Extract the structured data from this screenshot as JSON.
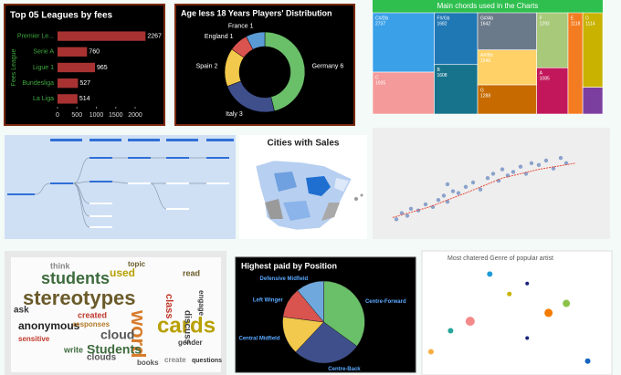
{
  "chart_data": [
    {
      "type": "bar",
      "orientation": "horizontal",
      "title": "Top 05 Leagues by fees",
      "y_label": "Fees League",
      "categories": [
        "Premier Le...",
        "Serie A",
        "Ligue 1",
        "Bundesliga",
        "La Liga"
      ],
      "values": [
        2267,
        760,
        965,
        527,
        514
      ],
      "color": "#a83232",
      "label_color": "#3ea83e",
      "xlim": [
        0,
        2400
      ],
      "xticks": [
        0,
        500,
        1000,
        1500,
        2000
      ]
    },
    {
      "type": "pie",
      "hole": true,
      "title": "Age less 18 Years Players' Distribution",
      "categories": [
        "Germany",
        "Italy",
        "Spain",
        "England",
        "France"
      ],
      "values": [
        6,
        3,
        2,
        1,
        1
      ],
      "colors": [
        "#6abf69",
        "#3e4f8c",
        "#f2c94c",
        "#d9534f",
        "#5b9bd5"
      ],
      "label_color": "#ffffff"
    },
    {
      "type": "treemap",
      "title": "Main chords used in the Charts",
      "categories": [
        "C#/Db",
        "F#/Gb",
        "G#/Ab",
        "F",
        "E",
        "D",
        "C",
        "B",
        "A#/Bb",
        "G",
        "A",
        null
      ],
      "values": [
        2737,
        1682,
        1642,
        1292,
        1118,
        1114,
        1935,
        1608,
        1546,
        1288,
        1085,
        400
      ],
      "colors": [
        "#3aa0e8",
        "#1f77b4",
        "#6b7a8a",
        "#a9c97a",
        "#f47c20",
        "#c9b200",
        "#f49a9a",
        "#17738c",
        "#ffd166",
        "#c76b00",
        "#c2185b",
        "#7b3fa0"
      ],
      "header_color": "#2fbf4f"
    },
    {
      "type": "scatter",
      "x": [
        2,
        5,
        8,
        10,
        14,
        18,
        22,
        25,
        28,
        30,
        33,
        36,
        40,
        44,
        48,
        52,
        55,
        58,
        60,
        63,
        66,
        70,
        73,
        76,
        80,
        84,
        88,
        92,
        95,
        30
      ],
      "y": [
        8,
        15,
        12,
        20,
        18,
        25,
        22,
        30,
        35,
        28,
        40,
        38,
        45,
        50,
        42,
        55,
        60,
        52,
        65,
        58,
        62,
        68,
        60,
        72,
        70,
        75,
        66,
        78,
        72,
        48
      ],
      "color": "#4a6fb5",
      "xlim": [
        0,
        100
      ],
      "ylim": [
        0,
        100
      ],
      "trend": {
        "x": [
          0,
          20,
          40,
          60,
          80,
          100
        ],
        "y": [
          10,
          22,
          38,
          55,
          65,
          72
        ],
        "color": "#e74c3c"
      }
    },
    {
      "type": "pie",
      "hole": false,
      "title": "Highest paid by Position",
      "categories": [
        "Centre-Forward",
        "Centre-Back",
        "Central Midfield",
        "Left Winger",
        "Defensive Midfield"
      ],
      "values": [
        35,
        27,
        15,
        12,
        11
      ],
      "colors": [
        "#6abf69",
        "#3e4f8c",
        "#f2c94c",
        "#d9534f",
        "#6fa8dc"
      ],
      "label_color": "#5aa9ff"
    },
    {
      "type": "scatter",
      "title": "Most chatered Genre of popular artist",
      "x": [
        34,
        55,
        45,
        77,
        67,
        23,
        12,
        55,
        1,
        89
      ],
      "y": [
        91,
        82,
        72,
        63,
        54,
        46,
        37,
        30,
        17,
        8
      ],
      "sizes": [
        3,
        2,
        2.5,
        4,
        4.5,
        5,
        3,
        2,
        3,
        3
      ],
      "colors": [
        "#1f9bd7",
        "#1a237e",
        "#c9b200",
        "#8bc34a",
        "#f57c00",
        "#f48a8a",
        "#26a69a",
        "#1a237e",
        "#f5b041",
        "#1565c0"
      ],
      "xlim": [
        0,
        100
      ],
      "ylim": [
        0,
        100
      ]
    }
  ],
  "map": {
    "title": "Cities with Sales"
  },
  "word_cloud": {
    "words": [
      "stereotypes",
      "students",
      "cards",
      "word",
      "cloud",
      "anonymous",
      "class",
      "ask",
      "sensitive",
      "gender",
      "responses",
      "write",
      "discuss",
      "used",
      "created",
      "clouds",
      "engage",
      "read",
      "books",
      "Students",
      "create",
      "think",
      "topic",
      "questions"
    ]
  }
}
